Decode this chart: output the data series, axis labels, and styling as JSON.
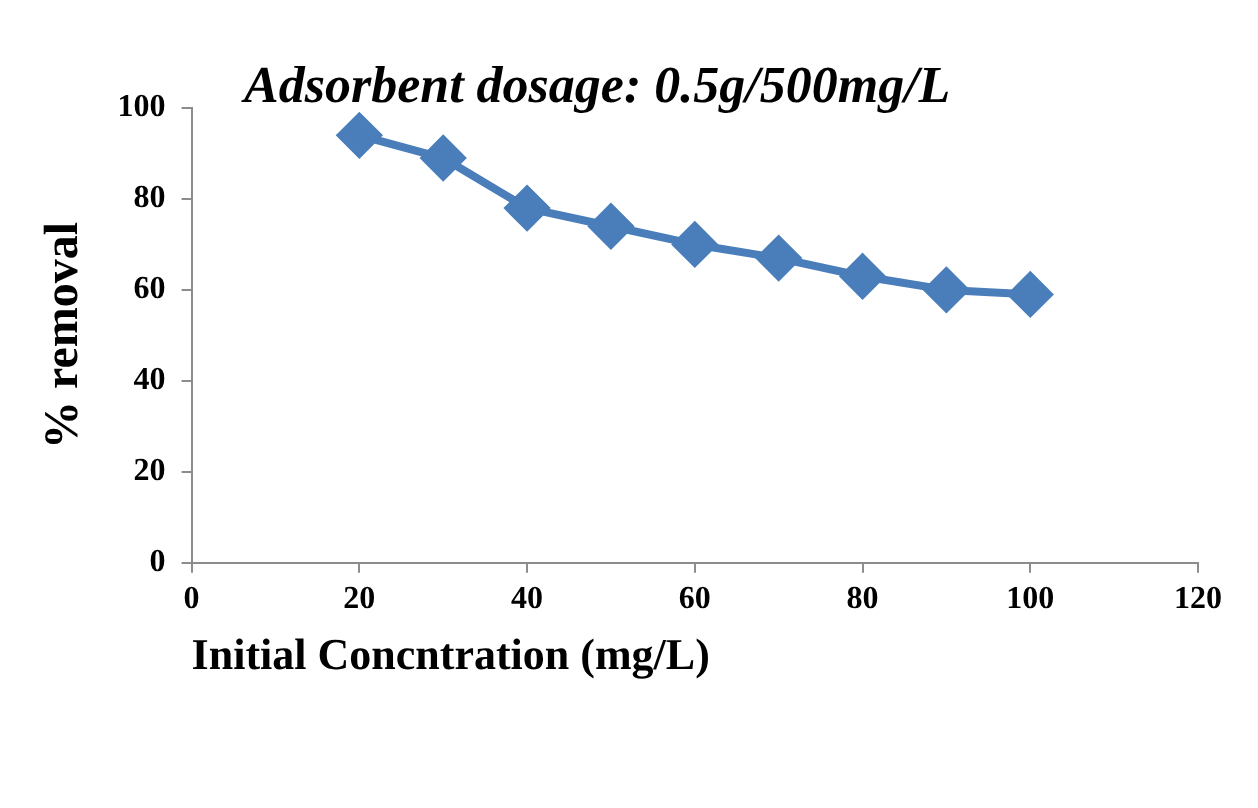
{
  "chart_data": {
    "type": "line",
    "title": "Adsorbent dosage: 0.5g/500mg/L",
    "xlabel": "Initial Concntration (mg/L)",
    "ylabel": "% removal",
    "x": [
      20,
      30,
      40,
      50,
      60,
      70,
      80,
      90,
      100
    ],
    "series": [
      {
        "color": "#4a7ebb",
        "values": [
          94,
          89,
          78,
          74,
          70,
          67,
          63,
          60,
          59
        ]
      }
    ],
    "xlim": [
      0,
      120
    ],
    "xticks": [
      0,
      20,
      40,
      60,
      80,
      100,
      120
    ],
    "ylim": [
      0,
      100
    ],
    "yticks": [
      0,
      20,
      40,
      60,
      80,
      100
    ],
    "grid": false,
    "legend": false,
    "marker": "diamond",
    "line_style": "solid"
  }
}
